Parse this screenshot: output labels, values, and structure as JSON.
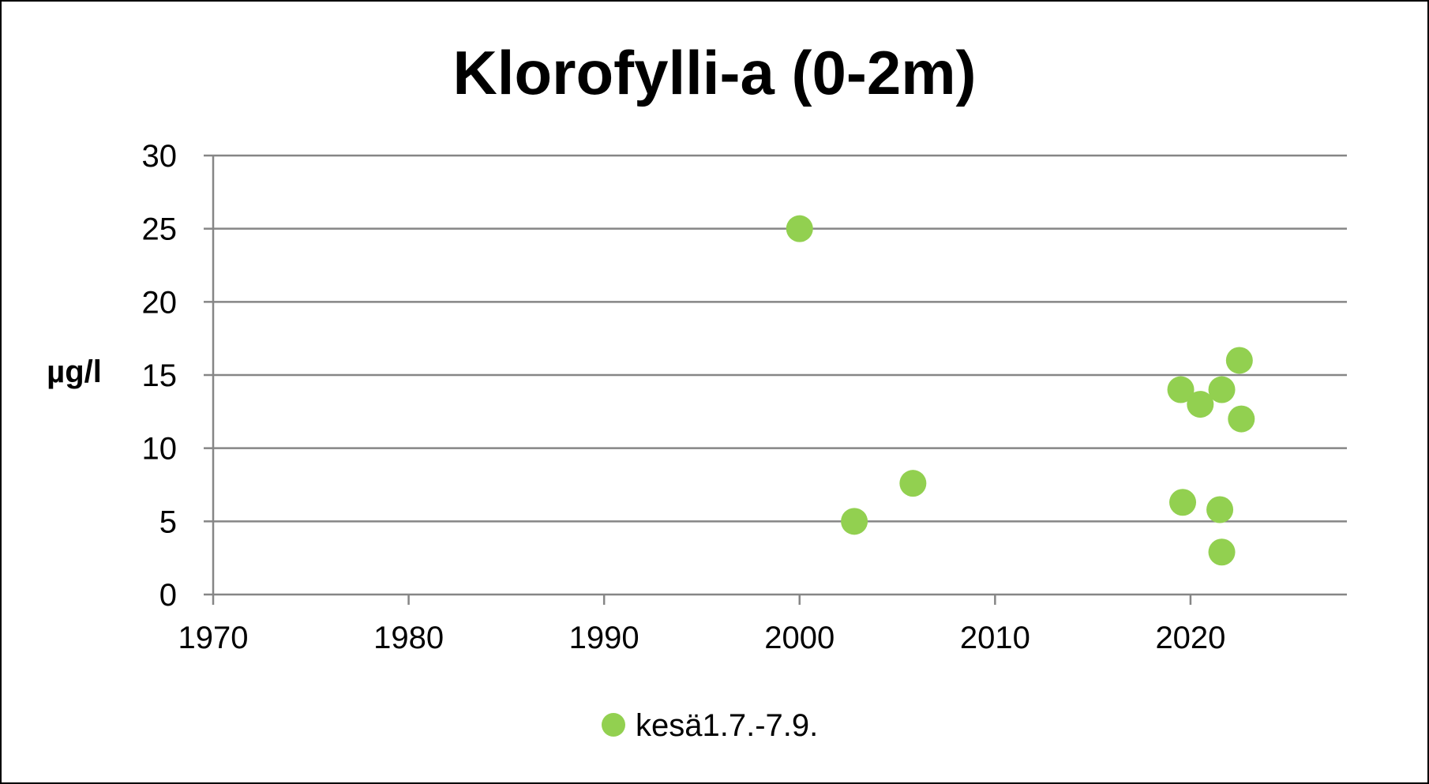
{
  "chart_data": {
    "type": "scatter",
    "title": "Klorofylli-a (0-2m)",
    "xlabel": "",
    "ylabel": "µg/l",
    "xlim": [
      1970,
      2028
    ],
    "ylim": [
      0,
      30
    ],
    "xticks": [
      1970,
      1980,
      1990,
      2000,
      2010,
      2020
    ],
    "yticks": [
      0,
      5,
      10,
      15,
      20,
      25,
      30
    ],
    "grid": "horizontal",
    "legend_position": "bottom",
    "series": [
      {
        "name": "kesä1.7.-7.9.",
        "color": "#92d050",
        "points": [
          {
            "x": 2000.0,
            "y": 25.0
          },
          {
            "x": 2002.8,
            "y": 5.0
          },
          {
            "x": 2005.8,
            "y": 7.6
          },
          {
            "x": 2019.5,
            "y": 14.0
          },
          {
            "x": 2019.6,
            "y": 6.3
          },
          {
            "x": 2020.5,
            "y": 13.0
          },
          {
            "x": 2021.5,
            "y": 5.8
          },
          {
            "x": 2021.6,
            "y": 14.0
          },
          {
            "x": 2021.6,
            "y": 2.9
          },
          {
            "x": 2022.5,
            "y": 16.0
          },
          {
            "x": 2022.6,
            "y": 12.0
          }
        ]
      }
    ]
  }
}
